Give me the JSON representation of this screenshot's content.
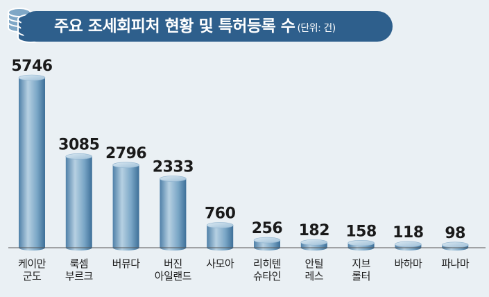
{
  "header": {
    "title": "주요 조세회피처 현황 및 특허등록 수",
    "unit": "(단위: 건)"
  },
  "colors": {
    "banner": "#2e5f8c",
    "bar_light": "#b6d0e2",
    "bar_mid": "#6f9dbf",
    "bar_dark": "#3d6f98",
    "axis": "#555555"
  },
  "icons": [
    "database-icon"
  ],
  "chart_data": {
    "type": "bar",
    "title": "주요 조세회피처 현황 및 특허등록 수",
    "subtitle": "(단위: 건)",
    "categories": [
      "케이만\n군도",
      "룩셈\n부르크",
      "버뮤다",
      "버진\n아일랜드",
      "사모아",
      "리히텐\n슈타인",
      "안틸\n레스",
      "지브\n롤터",
      "바하마",
      "파나마"
    ],
    "values": [
      5746,
      3085,
      2796,
      2333,
      760,
      256,
      182,
      158,
      118,
      98
    ],
    "ylim": [
      0,
      6000
    ],
    "grid": false,
    "legend": "none"
  }
}
